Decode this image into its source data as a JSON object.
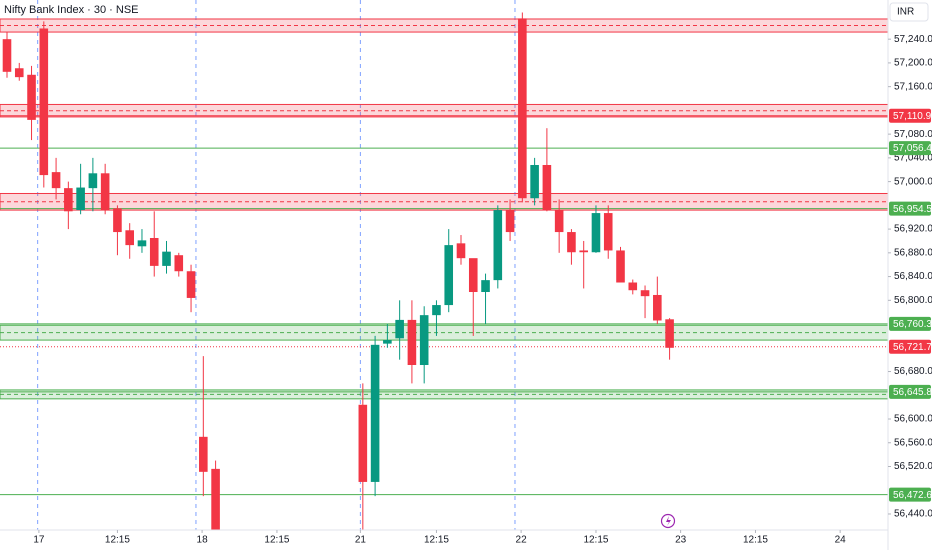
{
  "chart_data": {
    "type": "candlestick",
    "title": "Nifty Bank Index · 30 · NSE",
    "currency": "INR",
    "up_color": "#089981",
    "down_color": "#f23645",
    "x": [
      0,
      1,
      2,
      3,
      4,
      5,
      6,
      7,
      8,
      9,
      10,
      11,
      12,
      13,
      14,
      15,
      16,
      17,
      29,
      30,
      31,
      32,
      33,
      34,
      35,
      36,
      37,
      38,
      39,
      40,
      41,
      42,
      43,
      44,
      45,
      46,
      47,
      48,
      49,
      50,
      51,
      52,
      53,
      54
    ],
    "open": [
      57240,
      57191,
      57180,
      57258,
      57016,
      56989,
      56952,
      56989,
      57014,
      56955,
      56918,
      56891,
      56905,
      56858,
      56876,
      56849,
      56570,
      56516,
      56624,
      56494,
      56727,
      56736,
      56767,
      56691,
      56775,
      56792,
      56896,
      56871,
      56814,
      56834,
      56952,
      57275,
      56972,
      57028,
      56952,
      56915,
      56884,
      56881,
      56947,
      56884,
      56830,
      56817,
      56809,
      56768
    ],
    "high": [
      57252,
      57200,
      57195,
      57270,
      57040,
      57000,
      57030,
      57040,
      57030,
      56960,
      56930,
      56920,
      56950,
      56900,
      56880,
      56860,
      56706,
      56530,
      56660,
      56740,
      56760,
      56800,
      56800,
      56790,
      56800,
      56920,
      56910,
      56870,
      56845,
      56960,
      56970,
      57285,
      57040,
      57090,
      56970,
      56920,
      56900,
      56960,
      56960,
      56890,
      56835,
      56825,
      56840,
      56770
    ],
    "low": [
      57175,
      57170,
      57070,
      56990,
      56970,
      56920,
      56945,
      56950,
      56945,
      56876,
      56870,
      56880,
      56840,
      56845,
      56840,
      56780,
      56470,
      56390,
      56395,
      56470,
      56720,
      56700,
      56660,
      56660,
      56740,
      56780,
      56860,
      56740,
      56760,
      56820,
      56900,
      56965,
      56960,
      56950,
      56880,
      56860,
      56820,
      56880,
      56870,
      56830,
      56810,
      56770,
      56760,
      56700
    ],
    "close": [
      57185,
      57176,
      57104,
      57011,
      56989,
      56950,
      56990,
      57014,
      56952,
      56915,
      56893,
      56901,
      56858,
      56882,
      56849,
      56804,
      56511,
      56400,
      56494,
      56725,
      56733,
      56767,
      56691,
      56775,
      56792,
      56893,
      56871,
      56814,
      56834,
      56952,
      56915,
      56972,
      57028,
      56952,
      56915,
      56881,
      56881,
      56947,
      56884,
      56830,
      56817,
      56807,
      56766,
      56720
    ],
    "xlim": [
      -0.57,
      71.8
    ],
    "ylim": [
      56413,
      57306
    ],
    "xticks": [
      {
        "value": 2.6,
        "label": "17"
      },
      {
        "value": 9,
        "label": "12:15"
      },
      {
        "value": 15.9,
        "label": "18"
      },
      {
        "value": 22,
        "label": "12:15"
      },
      {
        "value": 28.8,
        "label": "21"
      },
      {
        "value": 35,
        "label": "12:15"
      },
      {
        "value": 41.9,
        "label": "22"
      },
      {
        "value": 48,
        "label": "12:15"
      },
      {
        "value": 54.9,
        "label": "23"
      },
      {
        "value": 61,
        "label": "12:15"
      },
      {
        "value": 67.9,
        "label": "24"
      }
    ],
    "session_breaks": [
      2.5,
      15.4,
      28.8,
      41.4
    ],
    "yticks": [
      {
        "value": 57240,
        "label": "57,240.00"
      },
      {
        "value": 57200,
        "label": "57,200.00"
      },
      {
        "value": 57160,
        "label": "57,160.00"
      },
      {
        "value": 57080,
        "label": "57,080.00"
      },
      {
        "value": 57040,
        "label": "57,040.00"
      },
      {
        "value": 57000,
        "label": "57,000.00"
      },
      {
        "value": 56920,
        "label": "56,920.00"
      },
      {
        "value": 56880,
        "label": "56,880.00"
      },
      {
        "value": 56840,
        "label": "56,840.00"
      },
      {
        "value": 56800,
        "label": "56,800.00"
      },
      {
        "value": 56680,
        "label": "56,680.00"
      },
      {
        "value": 56600,
        "label": "56,600.00"
      },
      {
        "value": 56560,
        "label": "56,560.00"
      },
      {
        "value": 56520,
        "label": "56,520.00"
      },
      {
        "value": 56440,
        "label": "56,440.00"
      }
    ],
    "zones": [
      {
        "from": 57274,
        "to": 57252,
        "color": "#f23645"
      },
      {
        "from": 57130,
        "to": 57109,
        "color": "#f23645"
      },
      {
        "from": 56980,
        "to": 56952,
        "color": "#f23645"
      },
      {
        "from": 56758,
        "to": 56733,
        "color": "#4caf50"
      },
      {
        "from": 56649,
        "to": 56634,
        "color": "#4caf50"
      }
    ],
    "levels": [
      {
        "value": 57110.9,
        "label": "57,110.90",
        "color": "#f23645"
      },
      {
        "value": 57056.45,
        "label": "57,056.45",
        "color": "#4caf50"
      },
      {
        "value": 56954.5,
        "label": "56,954.50",
        "color": "#4caf50"
      },
      {
        "value": 56760.35,
        "label": "56,760.35",
        "color": "#4caf50"
      },
      {
        "value": 56721.75,
        "label": "56,721.75",
        "color": "#f23645",
        "dotted": true
      },
      {
        "value": 56645.8,
        "label": "56,645.80",
        "color": "#4caf50"
      },
      {
        "value": 56472.6,
        "label": "56,472.60",
        "color": "#4caf50"
      }
    ]
  }
}
